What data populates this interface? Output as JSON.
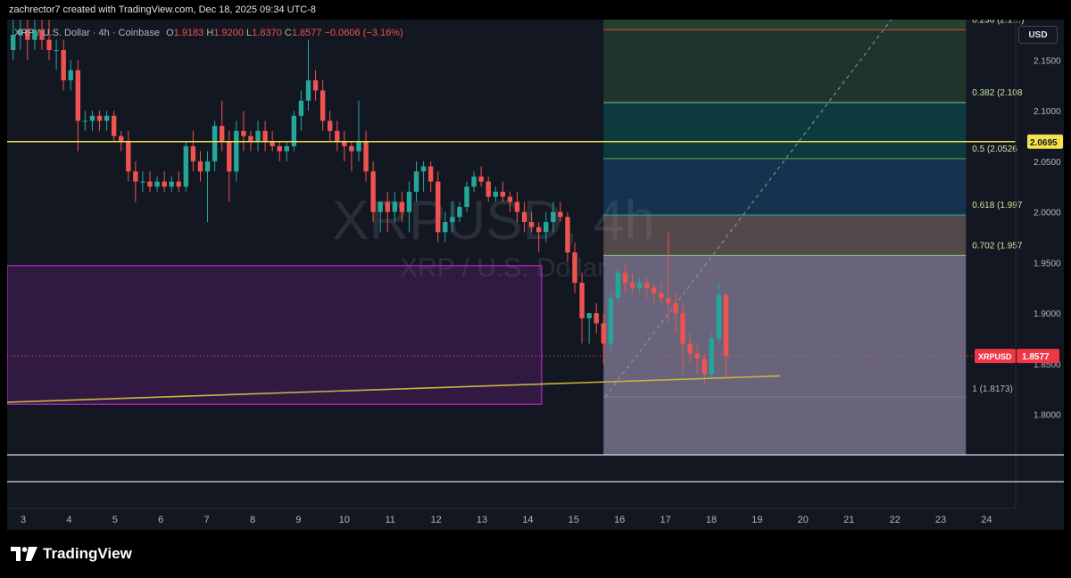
{
  "watermark_line": "zachrector7 created with TradingView.com, Dec 18, 2025 09:34 UTC-8",
  "header": {
    "symbol": "XRP / U.S. Dollar · 4h · Coinbase",
    "o_label": "O",
    "o": "1.9183",
    "h_label": "H",
    "h": "1.9200",
    "l_label": "L",
    "l": "1.8370",
    "c_label": "C",
    "c": "1.8577",
    "change": "−0.0606 (−3.16%)"
  },
  "currency_button": "USD",
  "big_watermark": "XRPUSD, 4h",
  "sub_watermark": "XRP / U.S. Dollar",
  "logo_text": "TradingView",
  "colors": {
    "up": "#26a69a",
    "down": "#ef5350",
    "horizontal_line": "#f2e24b",
    "trendline": "#c8b440",
    "zone": "#9c27b0",
    "price_tag": "#f23645"
  },
  "chart_data": {
    "type": "candlestick",
    "symbol": "XRPUSD",
    "interval": "4h",
    "ylim": [
      1.76,
      2.19
    ],
    "xlim": [
      2.7,
      24.7
    ],
    "y_ticks": [
      "2.1500",
      "2.1000",
      "2.0500",
      "2.0000",
      "1.9500",
      "1.9000",
      "1.8500",
      "1.8000"
    ],
    "x_ticks": [
      "3",
      "4",
      "5",
      "6",
      "7",
      "8",
      "9",
      "10",
      "11",
      "12",
      "13",
      "14",
      "15",
      "16",
      "17",
      "18",
      "19",
      "20",
      "21",
      "22",
      "23",
      "24"
    ],
    "last_price_label": "XRPUSD",
    "last_price": "1.8577",
    "horizontal_level": {
      "value": 2.0695,
      "label": "2.0695"
    },
    "fib_levels": [
      {
        "ratio": 0.236,
        "value": 2.18,
        "label": "0.236 (2.1…)"
      },
      {
        "ratio": 0.382,
        "value": 2.108,
        "label": "0.382 (2.108"
      },
      {
        "ratio": 0.5,
        "value": 2.0526,
        "label": "0.5 (2.0526"
      },
      {
        "ratio": 0.618,
        "value": 1.997,
        "label": "0.618 (1.997"
      },
      {
        "ratio": 0.702,
        "value": 1.957,
        "label": "0.702 (1.957"
      },
      {
        "ratio": 1,
        "value": 1.8173,
        "label": "1 (1.8173)"
      }
    ],
    "candles": [
      {
        "o": 2.16,
        "h": 2.19,
        "l": 2.15,
        "c": 2.175
      },
      {
        "o": 2.175,
        "h": 2.19,
        "l": 2.16,
        "c": 2.18
      },
      {
        "o": 2.18,
        "h": 2.19,
        "l": 2.15,
        "c": 2.17
      },
      {
        "o": 2.17,
        "h": 2.19,
        "l": 2.16,
        "c": 2.18
      },
      {
        "o": 2.18,
        "h": 2.19,
        "l": 2.16,
        "c": 2.17
      },
      {
        "o": 2.17,
        "h": 2.19,
        "l": 2.15,
        "c": 2.16
      },
      {
        "o": 2.16,
        "h": 2.17,
        "l": 2.14,
        "c": 2.16
      },
      {
        "o": 2.16,
        "h": 2.17,
        "l": 2.12,
        "c": 2.13
      },
      {
        "o": 2.13,
        "h": 2.15,
        "l": 2.12,
        "c": 2.14
      },
      {
        "o": 2.14,
        "h": 2.15,
        "l": 2.06,
        "c": 2.09
      },
      {
        "o": 2.09,
        "h": 2.1,
        "l": 2.08,
        "c": 2.09
      },
      {
        "o": 2.09,
        "h": 2.1,
        "l": 2.08,
        "c": 2.095
      },
      {
        "o": 2.095,
        "h": 2.1,
        "l": 2.08,
        "c": 2.09
      },
      {
        "o": 2.09,
        "h": 2.1,
        "l": 2.08,
        "c": 2.095
      },
      {
        "o": 2.095,
        "h": 2.1,
        "l": 2.07,
        "c": 2.075
      },
      {
        "o": 2.075,
        "h": 2.08,
        "l": 2.06,
        "c": 2.07
      },
      {
        "o": 2.07,
        "h": 2.08,
        "l": 2.03,
        "c": 2.04
      },
      {
        "o": 2.04,
        "h": 2.05,
        "l": 2.01,
        "c": 2.03
      },
      {
        "o": 2.03,
        "h": 2.04,
        "l": 2.02,
        "c": 2.03
      },
      {
        "o": 2.03,
        "h": 2.04,
        "l": 2.02,
        "c": 2.025
      },
      {
        "o": 2.025,
        "h": 2.035,
        "l": 2.02,
        "c": 2.03
      },
      {
        "o": 2.03,
        "h": 2.04,
        "l": 2.02,
        "c": 2.025
      },
      {
        "o": 2.025,
        "h": 2.035,
        "l": 2.02,
        "c": 2.03
      },
      {
        "o": 2.03,
        "h": 2.04,
        "l": 2.02,
        "c": 2.025
      },
      {
        "o": 2.025,
        "h": 2.07,
        "l": 2.02,
        "c": 2.065
      },
      {
        "o": 2.065,
        "h": 2.08,
        "l": 2.04,
        "c": 2.05
      },
      {
        "o": 2.05,
        "h": 2.06,
        "l": 2.03,
        "c": 2.04
      },
      {
        "o": 2.04,
        "h": 2.06,
        "l": 1.99,
        "c": 2.05
      },
      {
        "o": 2.05,
        "h": 2.09,
        "l": 2.04,
        "c": 2.085
      },
      {
        "o": 2.085,
        "h": 2.11,
        "l": 2.06,
        "c": 2.07
      },
      {
        "o": 2.07,
        "h": 2.08,
        "l": 2.01,
        "c": 2.04
      },
      {
        "o": 2.04,
        "h": 2.09,
        "l": 2.03,
        "c": 2.08
      },
      {
        "o": 2.08,
        "h": 2.1,
        "l": 2.06,
        "c": 2.075
      },
      {
        "o": 2.075,
        "h": 2.08,
        "l": 2.06,
        "c": 2.07
      },
      {
        "o": 2.07,
        "h": 2.09,
        "l": 2.06,
        "c": 2.08
      },
      {
        "o": 2.08,
        "h": 2.09,
        "l": 2.06,
        "c": 2.07
      },
      {
        "o": 2.07,
        "h": 2.08,
        "l": 2.06,
        "c": 2.065
      },
      {
        "o": 2.065,
        "h": 2.07,
        "l": 2.05,
        "c": 2.06
      },
      {
        "o": 2.06,
        "h": 2.07,
        "l": 2.05,
        "c": 2.065
      },
      {
        "o": 2.065,
        "h": 2.1,
        "l": 2.06,
        "c": 2.095
      },
      {
        "o": 2.095,
        "h": 2.12,
        "l": 2.08,
        "c": 2.11
      },
      {
        "o": 2.11,
        "h": 2.17,
        "l": 2.1,
        "c": 2.13
      },
      {
        "o": 2.13,
        "h": 2.14,
        "l": 2.11,
        "c": 2.12
      },
      {
        "o": 2.12,
        "h": 2.13,
        "l": 2.08,
        "c": 2.09
      },
      {
        "o": 2.09,
        "h": 2.1,
        "l": 2.07,
        "c": 2.08
      },
      {
        "o": 2.08,
        "h": 2.09,
        "l": 2.06,
        "c": 2.07
      },
      {
        "o": 2.07,
        "h": 2.08,
        "l": 2.05,
        "c": 2.065
      },
      {
        "o": 2.065,
        "h": 2.07,
        "l": 2.04,
        "c": 2.06
      },
      {
        "o": 2.06,
        "h": 2.11,
        "l": 2.05,
        "c": 2.07
      },
      {
        "o": 2.07,
        "h": 2.08,
        "l": 2.03,
        "c": 2.04
      },
      {
        "o": 2.04,
        "h": 2.05,
        "l": 1.99,
        "c": 2.0
      },
      {
        "o": 2.0,
        "h": 2.01,
        "l": 1.98,
        "c": 2.01
      },
      {
        "o": 2.01,
        "h": 2.02,
        "l": 1.98,
        "c": 2.0
      },
      {
        "o": 2.0,
        "h": 2.02,
        "l": 1.99,
        "c": 2.01
      },
      {
        "o": 2.01,
        "h": 2.02,
        "l": 1.99,
        "c": 2.0
      },
      {
        "o": 2.0,
        "h": 2.03,
        "l": 1.98,
        "c": 2.02
      },
      {
        "o": 2.02,
        "h": 2.05,
        "l": 2.01,
        "c": 2.04
      },
      {
        "o": 2.04,
        "h": 2.05,
        "l": 2.02,
        "c": 2.045
      },
      {
        "o": 2.045,
        "h": 2.05,
        "l": 2.02,
        "c": 2.03
      },
      {
        "o": 2.03,
        "h": 2.04,
        "l": 1.97,
        "c": 1.98
      },
      {
        "o": 1.98,
        "h": 2.0,
        "l": 1.97,
        "c": 1.99
      },
      {
        "o": 1.99,
        "h": 2.01,
        "l": 1.98,
        "c": 1.995
      },
      {
        "o": 1.995,
        "h": 2.01,
        "l": 1.99,
        "c": 2.005
      },
      {
        "o": 2.005,
        "h": 2.03,
        "l": 2.0,
        "c": 2.025
      },
      {
        "o": 2.025,
        "h": 2.04,
        "l": 2.02,
        "c": 2.035
      },
      {
        "o": 2.035,
        "h": 2.045,
        "l": 2.025,
        "c": 2.03
      },
      {
        "o": 2.03,
        "h": 2.035,
        "l": 2.01,
        "c": 2.015
      },
      {
        "o": 2.015,
        "h": 2.025,
        "l": 2.01,
        "c": 2.02
      },
      {
        "o": 2.02,
        "h": 2.03,
        "l": 2.01,
        "c": 2.015
      },
      {
        "o": 2.015,
        "h": 2.02,
        "l": 2.0,
        "c": 2.01
      },
      {
        "o": 2.01,
        "h": 2.02,
        "l": 1.99,
        "c": 2.0
      },
      {
        "o": 2.0,
        "h": 2.01,
        "l": 1.98,
        "c": 1.99
      },
      {
        "o": 1.99,
        "h": 2.0,
        "l": 1.98,
        "c": 1.985
      },
      {
        "o": 1.985,
        "h": 1.99,
        "l": 1.96,
        "c": 1.98
      },
      {
        "o": 1.98,
        "h": 2.0,
        "l": 1.97,
        "c": 1.99
      },
      {
        "o": 1.99,
        "h": 2.01,
        "l": 1.98,
        "c": 2.0
      },
      {
        "o": 2.0,
        "h": 2.01,
        "l": 1.99,
        "c": 1.995
      },
      {
        "o": 1.995,
        "h": 2.0,
        "l": 1.95,
        "c": 1.96
      },
      {
        "o": 1.96,
        "h": 1.97,
        "l": 1.92,
        "c": 1.93
      },
      {
        "o": 1.93,
        "h": 1.94,
        "l": 1.87,
        "c": 1.895
      },
      {
        "o": 1.895,
        "h": 1.9,
        "l": 1.87,
        "c": 1.9
      },
      {
        "o": 1.9,
        "h": 1.91,
        "l": 1.88,
        "c": 1.89
      },
      {
        "o": 1.89,
        "h": 1.9,
        "l": 1.85,
        "c": 1.87
      },
      {
        "o": 1.87,
        "h": 1.92,
        "l": 1.86,
        "c": 1.915
      },
      {
        "o": 1.915,
        "h": 1.945,
        "l": 1.91,
        "c": 1.94
      },
      {
        "o": 1.94,
        "h": 1.95,
        "l": 1.92,
        "c": 1.93
      },
      {
        "o": 1.93,
        "h": 1.94,
        "l": 1.92,
        "c": 1.925
      },
      {
        "o": 1.925,
        "h": 1.935,
        "l": 1.92,
        "c": 1.93
      },
      {
        "o": 1.93,
        "h": 1.935,
        "l": 1.915,
        "c": 1.925
      },
      {
        "o": 1.925,
        "h": 1.93,
        "l": 1.91,
        "c": 1.92
      },
      {
        "o": 1.92,
        "h": 1.93,
        "l": 1.91,
        "c": 1.915
      },
      {
        "o": 1.915,
        "h": 1.98,
        "l": 1.89,
        "c": 1.91
      },
      {
        "o": 1.91,
        "h": 1.92,
        "l": 1.88,
        "c": 1.9
      },
      {
        "o": 1.9,
        "h": 1.91,
        "l": 1.84,
        "c": 1.87
      },
      {
        "o": 1.87,
        "h": 1.88,
        "l": 1.85,
        "c": 1.86
      },
      {
        "o": 1.86,
        "h": 1.87,
        "l": 1.84,
        "c": 1.855
      },
      {
        "o": 1.855,
        "h": 1.86,
        "l": 1.83,
        "c": 1.84
      },
      {
        "o": 1.84,
        "h": 1.88,
        "l": 1.835,
        "c": 1.875
      },
      {
        "o": 1.875,
        "h": 1.93,
        "l": 1.87,
        "c": 1.918
      },
      {
        "o": 1.918,
        "h": 1.92,
        "l": 1.837,
        "c": 1.8577
      }
    ]
  }
}
